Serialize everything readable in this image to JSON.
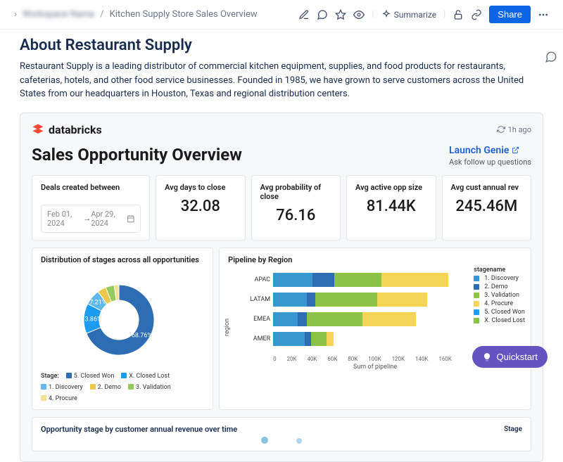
{
  "breadcrumb": {
    "space_blur": "Workspace Name",
    "page": "Kitchen Supply Store Sales Overview"
  },
  "toolbar": {
    "summarize": "Summarize",
    "share": "Share"
  },
  "page_title": "About Restaurant Supply",
  "page_desc": "Restaurant Supply is a leading distributor of commercial kitchen equipment, supplies, and food products for restaurants, cafeterias, hotels, and other food service businesses. Founded in 1985, we have grown to serve customers across the United States from our headquarters in Houston, Texas and regional distribution centers.",
  "embed": {
    "brand": "databricks",
    "timestamp": "1h ago",
    "dash_title": "Sales Opportunity Overview",
    "genie_link": "Launch Genie",
    "genie_sub": "Ask follow up questions",
    "date_filter": {
      "label": "Deals created between",
      "from": "Feb 01, 2024",
      "to": "Apr 29, 2024"
    },
    "metrics": [
      {
        "label": "Avg days to close",
        "value": "32.08"
      },
      {
        "label": "Avg probability of close",
        "value": "76.16"
      },
      {
        "label": "Avg active opp size",
        "value": "81.44K"
      },
      {
        "label": "Avg cust annual rev",
        "value": "245.46M"
      }
    ],
    "donut": {
      "title": "Distribution of stages across all opportunities",
      "legend_label": "Stage:",
      "slices": [
        {
          "name": "5. Closed Won",
          "pct": 68.76,
          "color": "#2f6db2",
          "label_shown": "68.76%"
        },
        {
          "name": "X. Closed Lost",
          "pct": 13.86,
          "color": "#1d9bf0",
          "label_shown": "13.86%"
        },
        {
          "name": "1. Discovery",
          "pct": 7.21,
          "color": "#5fb9ec",
          "label_shown": "7.21%"
        },
        {
          "name": "2. Demo",
          "pct": 4.0,
          "color": "#edc94b",
          "label_shown": ""
        },
        {
          "name": "3. Validation",
          "pct": 4.0,
          "color": "#94c95c",
          "label_shown": ""
        },
        {
          "name": "4. Procure",
          "pct": 2.17,
          "color": "#f4e08f",
          "label_shown": ""
        }
      ]
    },
    "bars": {
      "title": "Pipeline by Region",
      "legend_title": "stagename",
      "y_axis_label": "region",
      "x_axis_label": "Sum of pipeline",
      "x_ticks": [
        "0",
        "20K",
        "40K",
        "60K",
        "80K",
        "100K",
        "120K",
        "140K",
        "160K"
      ],
      "x_max": 160000,
      "colors": {
        "1. Discovery": "#3997cf",
        "2. Demo": "#2f6db2",
        "3. Validation": "#8bc34a",
        "4. Procure": "#f5d456",
        "5. Closed Won": "#1d9bf0",
        "X. Closed Lost": "#8bc34a"
      },
      "rows": [
        {
          "region": "APAC",
          "segments": [
            {
              "stage": "1. Discovery",
              "v": 35000,
              "color": "#3997cf"
            },
            {
              "stage": "2. Demo",
              "v": 20000,
              "color": "#2f6db2"
            },
            {
              "stage": "3. Validation",
              "v": 42000,
              "color": "#8bc34a"
            },
            {
              "stage": "4. Procure",
              "v": 60000,
              "color": "#f5d456"
            }
          ]
        },
        {
          "region": "LATAM",
          "segments": [
            {
              "stage": "1. Discovery",
              "v": 30000,
              "color": "#3997cf"
            },
            {
              "stage": "2. Demo",
              "v": 8000,
              "color": "#2f6db2"
            },
            {
              "stage": "3. Validation",
              "v": 55000,
              "color": "#8bc34a"
            },
            {
              "stage": "4. Procure",
              "v": 45000,
              "color": "#f5d456"
            }
          ]
        },
        {
          "region": "EMEA",
          "segments": [
            {
              "stage": "1. Discovery",
              "v": 22000,
              "color": "#3997cf"
            },
            {
              "stage": "2. Demo",
              "v": 8000,
              "color": "#2f6db2"
            },
            {
              "stage": "3. Validation",
              "v": 50000,
              "color": "#8bc34a"
            },
            {
              "stage": "4. Procure",
              "v": 48000,
              "color": "#f5d456"
            }
          ]
        },
        {
          "region": "AMER",
          "segments": [
            {
              "stage": "1. Discovery",
              "v": 28000,
              "color": "#3997cf"
            },
            {
              "stage": "2. Demo",
              "v": 6000,
              "color": "#2f6db2"
            },
            {
              "stage": "3. Validation",
              "v": 14000,
              "color": "#8bc34a"
            },
            {
              "stage": "4. Procure",
              "v": 6000,
              "color": "#f5d456"
            }
          ]
        }
      ],
      "legend_items": [
        {
          "name": "1. Discovery",
          "color": "#3997cf"
        },
        {
          "name": "2. Demo",
          "color": "#2f6db2"
        },
        {
          "name": "3. Validation",
          "color": "#8bc34a"
        },
        {
          "name": "4. Procure",
          "color": "#f5d456"
        },
        {
          "name": "5. Closed Won",
          "color": "#1d9bf0"
        },
        {
          "name": "X. Closed Lost",
          "color": "#8bc34a"
        }
      ]
    },
    "bottom_title": "Opportunity stage by customer annual revenue over time",
    "bottom_right": "Stage"
  },
  "quickstart": "Quickstart"
}
